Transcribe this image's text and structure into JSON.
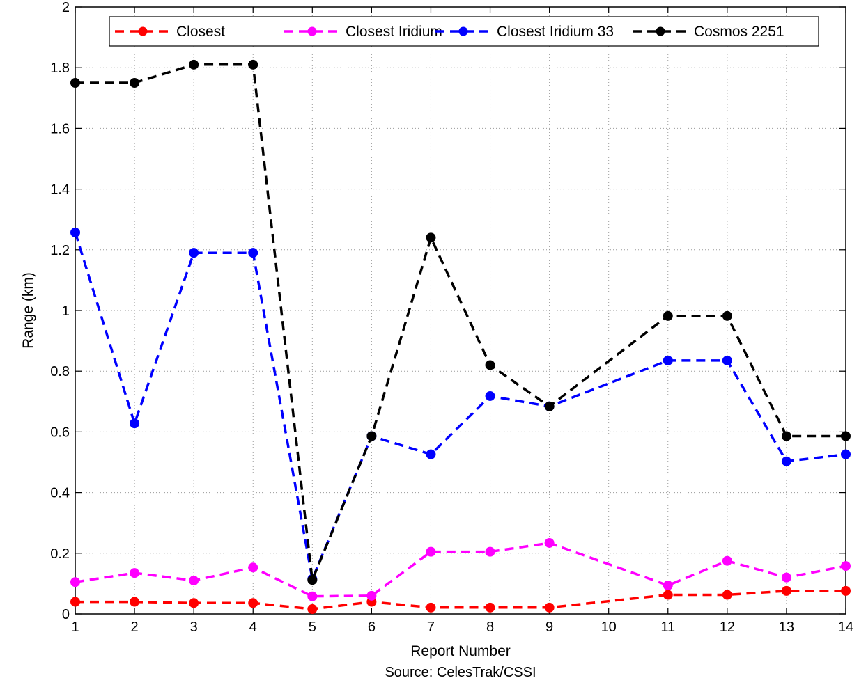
{
  "chart_data": {
    "type": "line",
    "title": "",
    "xlabel": "Report Number",
    "source": "Source: CelesTrak/CSSI",
    "ylabel": "Range (km)",
    "ylim": [
      0,
      2
    ],
    "x_tick_labels": [
      "1",
      "2",
      "3",
      "4",
      "5",
      "6",
      "7",
      "8",
      "9",
      "10",
      "11",
      "12",
      "13",
      "14"
    ],
    "y_ticks": [
      0,
      0.2,
      0.4,
      0.6,
      0.8,
      1,
      1.2,
      1.4,
      1.6,
      1.8,
      2
    ],
    "y_tick_labels": [
      "0",
      "0.2",
      "0.4",
      "0.6",
      "0.8",
      "1",
      "1.2",
      "1.4",
      "1.6",
      "1.8",
      "2"
    ],
    "grid": true,
    "legend_position": "top",
    "x_missing_category": "10",
    "series": [
      {
        "name": "Closest",
        "color": "#ff0000",
        "x": [
          "1",
          "2",
          "3",
          "4",
          "5",
          "6",
          "7",
          "8",
          "9",
          "11",
          "12",
          "13",
          "14"
        ],
        "y": [
          0.04,
          0.04,
          0.036,
          0.036,
          0.016,
          0.04,
          0.021,
          0.021,
          0.021,
          0.063,
          0.063,
          0.076,
          0.076
        ]
      },
      {
        "name": "Closest Iridium",
        "color": "#ff00ff",
        "x": [
          "1",
          "2",
          "3",
          "4",
          "5",
          "6",
          "7",
          "8",
          "9",
          "11",
          "12",
          "13",
          "14"
        ],
        "y": [
          0.105,
          0.135,
          0.11,
          0.153,
          0.058,
          0.06,
          0.205,
          0.205,
          0.234,
          0.094,
          0.175,
          0.12,
          0.158
        ]
      },
      {
        "name": "Closest Iridium 33",
        "color": "#0000ff",
        "x": [
          "1",
          "2",
          "3",
          "4",
          "5",
          "6",
          "7",
          "8",
          "9",
          "11",
          "12",
          "13",
          "14"
        ],
        "y": [
          1.257,
          0.628,
          1.19,
          1.19,
          0.115,
          0.586,
          0.526,
          0.718,
          0.684,
          0.835,
          0.835,
          0.503,
          0.526
        ]
      },
      {
        "name": "Cosmos 2251",
        "color": "#000000",
        "x": [
          "1",
          "2",
          "3",
          "4",
          "5",
          "6",
          "7",
          "8",
          "9",
          "11",
          "12",
          "13",
          "14"
        ],
        "y": [
          1.75,
          1.75,
          1.81,
          1.81,
          0.112,
          0.586,
          1.24,
          0.82,
          0.684,
          0.982,
          0.982,
          0.586,
          0.586
        ]
      }
    ]
  }
}
